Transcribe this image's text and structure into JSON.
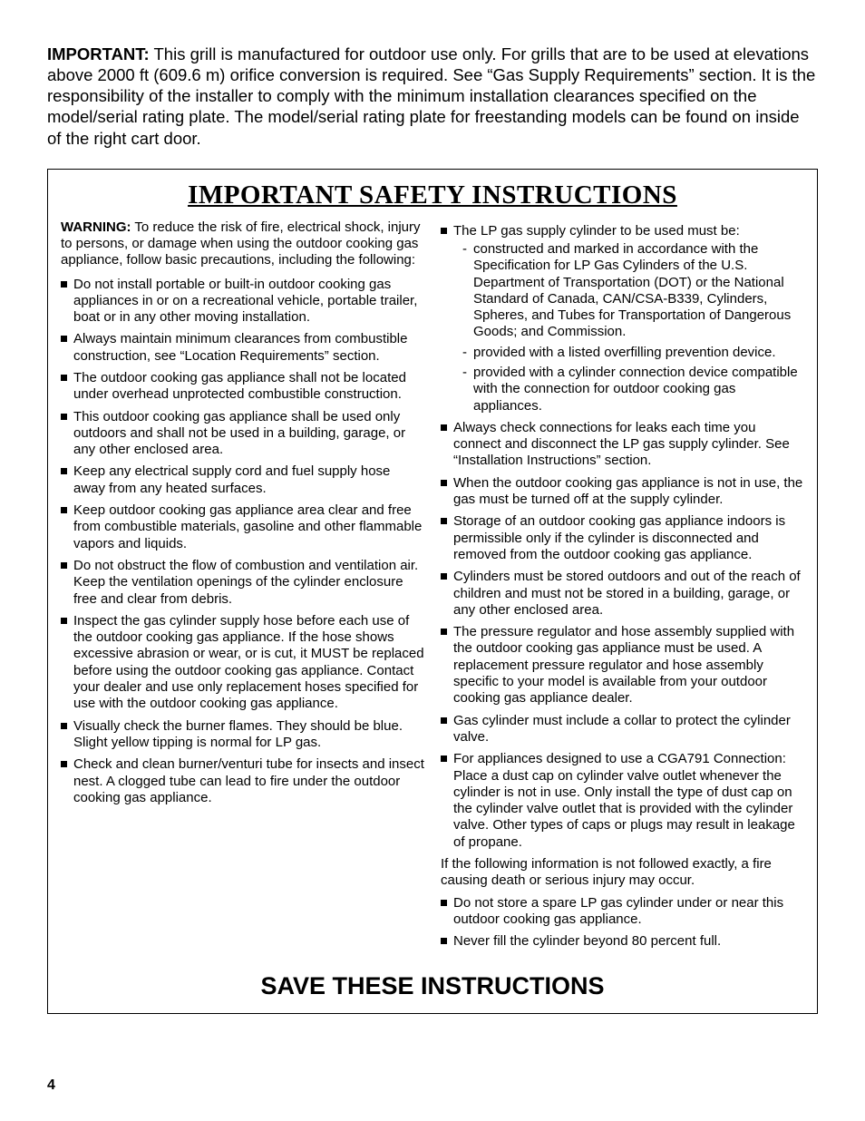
{
  "intro": {
    "label": "IMPORTANT:",
    "text": " This grill is manufactured for outdoor use only. For grills that are to be used at elevations above 2000 ft (609.6 m) orifice conversion is required. See “Gas Supply Requirements” section. It is the responsibility of the installer to comply with the minimum installation clearances specified on the model/serial rating plate. The model/serial rating plate for freestanding models can be found on inside of the right cart door."
  },
  "safety_title": "IMPORTANT SAFETY INSTRUCTIONS",
  "warning": {
    "label": "WARNING:",
    "text": " To reduce the risk of fire, electrical shock, injury to persons, or damage when using the outdoor cooking gas appliance, follow basic precautions, including the following:"
  },
  "left_bullets": [
    "Do not install portable or built-in outdoor cooking gas appliances in or on a recreational vehicle, portable trailer,  boat or in any other moving installation.",
    "Always maintain minimum clearances from combustible construction, see “Location Requirements” section.",
    "The outdoor cooking gas appliance shall not be located under overhead unprotected combustible construction.",
    "This outdoor cooking gas appliance shall be used only outdoors and shall not be used in a building, garage, or any other enclosed area.",
    "Keep any electrical supply cord and fuel supply hose away from any heated surfaces.",
    "Keep outdoor cooking gas appliance area clear and free from combustible materials, gasoline and other flammable vapors and liquids.",
    "Do not obstruct the flow of combustion and ventilation air. Keep the ventilation openings of the cylinder enclosure free and clear from debris.",
    "Inspect the gas cylinder supply hose before each use of the outdoor cooking gas appliance. If the hose shows excessive abrasion or wear, or is cut, it MUST be replaced before using the outdoor cooking gas appliance. Contact your dealer and use only replacement hoses specified for use with the outdoor cooking gas  appliance.",
    "Visually check the burner flames. They should be blue. Slight yellow tipping is normal for LP gas.",
    "Check and clean burner/venturi tube for insects and insect nest. A clogged tube can lead to fire under the outdoor cooking gas appliance."
  ],
  "right_first_bullet": "The LP gas supply cylinder to be used must be:",
  "right_sub_dashes": [
    "constructed and marked in accordance with the Specification for LP Gas Cylinders of the U.S. Department   of Transportation (DOT) or the National Standard of   Canada, CAN/CSA-B339, Cylinders, Spheres, and Tubes   for Transportation of Dangerous Goods; and Commission.",
    "provided with a listed overfilling prevention device.",
    "provided with a cylinder connection device compatible with the connection for outdoor cooking gas appliances."
  ],
  "right_bullets_a": [
    "Always check connections for leaks each time you connect  and disconnect the LP gas supply cylinder. See “Installation Instructions” section.",
    "When the outdoor cooking gas appliance is not in use, the gas must be turned off at the supply cylinder.",
    "Storage of an outdoor cooking gas appliance indoors is permissible only if the cylinder is disconnected and removed from the outdoor cooking gas appliance.",
    "Cylinders must be stored outdoors and out of the reach of  children and must not be stored in a building, garage, or any other enclosed area.",
    "The pressure regulator and hose assembly supplied with the outdoor cooking gas appliance must be used. A replacement pressure regulator and hose assembly specific to your model is available from your outdoor cooking gas appliance dealer.",
    "Gas cylinder must include a collar to protect the cylinder valve.",
    "For appliances designed to use a CGA791 Connection: Place a dust cap on cylinder valve outlet whenever the cylinder is not in use. Only install the type of dust cap on the cylinder valve outlet that is provided with the cylinder valve. Other types of caps or plugs may result in leakage of propane."
  ],
  "right_mid_para": "If the following information is not followed exactly, a fire causing death or serious injury may occur.",
  "right_bullets_b": [
    "Do not store a spare LP gas cylinder under or near this outdoor cooking gas appliance.",
    "Never fill the cylinder beyond 80 percent full."
  ],
  "save": "SAVE THESE INSTRUCTIONS",
  "page_number": "4"
}
